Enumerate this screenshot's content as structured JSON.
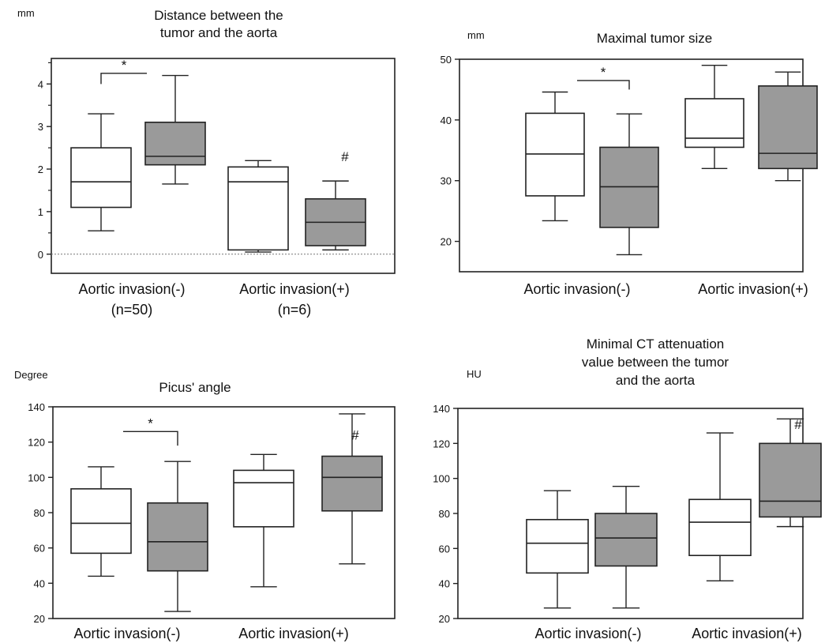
{
  "chart_data": [
    {
      "type": "box",
      "title": [
        "Distance between the",
        "tumor and the aorta"
      ],
      "ylabel": "mm",
      "ylim": [
        -0.45,
        4.6
      ],
      "yticks": [
        0,
        1,
        2,
        3,
        4
      ],
      "minor_ticks": true,
      "zero_line": true,
      "groups": [
        {
          "label": "Aortic invasion(-)",
          "sublabel": "(n=50)"
        },
        {
          "label": "Aortic invasion(+)",
          "sublabel": "(n=6)"
        }
      ],
      "boxes": [
        {
          "group": 0,
          "fill": "#ffffff",
          "min": 0.55,
          "q1": 1.1,
          "median": 1.7,
          "q3": 2.5,
          "max": 3.3
        },
        {
          "group": 0,
          "fill": "#9a9a9a",
          "min": 1.65,
          "q1": 2.1,
          "median": 2.3,
          "q3": 3.1,
          "max": 4.2
        },
        {
          "group": 1,
          "fill": "#ffffff",
          "min": 0.05,
          "q1": 0.1,
          "median": 1.7,
          "q3": 2.05,
          "max": 2.2
        },
        {
          "group": 1,
          "fill": "#9a9a9a",
          "min": 0.1,
          "q1": 0.2,
          "median": 0.75,
          "q3": 1.3,
          "max": 1.72
        }
      ],
      "significance": [
        {
          "from_box": 0,
          "to_box": 1,
          "y": 4.25,
          "drop": 0.25,
          "label": "*"
        }
      ],
      "hash_marks": [
        {
          "box": 3,
          "y": 2.3,
          "label": "#"
        }
      ]
    },
    {
      "type": "box",
      "title": [
        "Maximal tumor size"
      ],
      "ylabel": "mm",
      "ylim": [
        15,
        50
      ],
      "yticks": [
        20,
        30,
        40,
        50
      ],
      "minor_ticks": false,
      "zero_line": false,
      "groups": [
        {
          "label": "Aortic invasion(-)",
          "sublabel": ""
        },
        {
          "label": "Aortic invasion(+)",
          "sublabel": ""
        }
      ],
      "boxes": [
        {
          "group": 0,
          "fill": "#ffffff",
          "min": 23.4,
          "q1": 27.5,
          "median": 34.4,
          "q3": 41.1,
          "max": 44.6
        },
        {
          "group": 0,
          "fill": "#9a9a9a",
          "min": 17.8,
          "q1": 22.3,
          "median": 29.0,
          "q3": 35.5,
          "max": 41.0
        },
        {
          "group": 1,
          "fill": "#ffffff",
          "min": 32.0,
          "q1": 35.5,
          "median": 37.0,
          "q3": 43.5,
          "max": 49.0
        },
        {
          "group": 1,
          "fill": "#9a9a9a",
          "min": 30.0,
          "q1": 32.0,
          "median": 34.5,
          "q3": 45.6,
          "max": 47.9
        }
      ],
      "significance": [
        {
          "from_box": 0,
          "to_box": 1,
          "y": 46.5,
          "drop": 1.5,
          "label": "*"
        }
      ],
      "hash_marks": []
    },
    {
      "type": "box",
      "title": [
        "Picus' angle"
      ],
      "ylabel": "Degree",
      "ylim": [
        20,
        140
      ],
      "yticks": [
        20,
        40,
        60,
        80,
        100,
        120,
        140
      ],
      "minor_ticks": false,
      "zero_line": false,
      "groups": [
        {
          "label": "Aortic invasion(-)",
          "sublabel": ""
        },
        {
          "label": "Aortic invasion(+)",
          "sublabel": ""
        }
      ],
      "boxes": [
        {
          "group": 0,
          "fill": "#ffffff",
          "min": 44,
          "q1": 57,
          "median": 74,
          "q3": 93.5,
          "max": 106
        },
        {
          "group": 0,
          "fill": "#9a9a9a",
          "min": 24,
          "q1": 47,
          "median": 63.5,
          "q3": 85.5,
          "max": 109
        },
        {
          "group": 1,
          "fill": "#ffffff",
          "min": 38,
          "q1": 72,
          "median": 97,
          "q3": 104,
          "max": 113
        },
        {
          "group": 1,
          "fill": "#9a9a9a",
          "min": 51,
          "q1": 81,
          "median": 100,
          "q3": 112,
          "max": 136
        }
      ],
      "significance": [
        {
          "from_box": 0,
          "to_box": 1,
          "y": 126,
          "drop": 8,
          "label": "*"
        }
      ],
      "hash_marks": [
        {
          "box": 3,
          "y": 124,
          "label": "#"
        }
      ]
    },
    {
      "type": "box",
      "title": [
        "Minimal CT attenuation",
        "value between the tumor",
        "and the aorta"
      ],
      "ylabel": "HU",
      "ylim": [
        20,
        140
      ],
      "yticks": [
        20,
        40,
        60,
        80,
        100,
        120,
        140
      ],
      "minor_ticks": false,
      "zero_line": false,
      "groups": [
        {
          "label": "Aortic invasion(-)",
          "sublabel": ""
        },
        {
          "label": "Aortic invasion(+)",
          "sublabel": ""
        }
      ],
      "boxes": [
        {
          "group": 0,
          "fill": "#ffffff",
          "min": 26,
          "q1": 46,
          "median": 63,
          "q3": 76.5,
          "max": 93
        },
        {
          "group": 0,
          "fill": "#9a9a9a",
          "min": 26,
          "q1": 50,
          "median": 66,
          "q3": 80,
          "max": 95.5
        },
        {
          "group": 1,
          "fill": "#ffffff",
          "min": 41.5,
          "q1": 56,
          "median": 75,
          "q3": 88,
          "max": 126
        },
        {
          "group": 1,
          "fill": "#9a9a9a",
          "min": 72.5,
          "q1": 78,
          "median": 87,
          "q3": 120,
          "max": 134
        }
      ],
      "significance": [],
      "hash_marks": [
        {
          "box": 3,
          "y": 131,
          "label": "#"
        }
      ]
    }
  ]
}
